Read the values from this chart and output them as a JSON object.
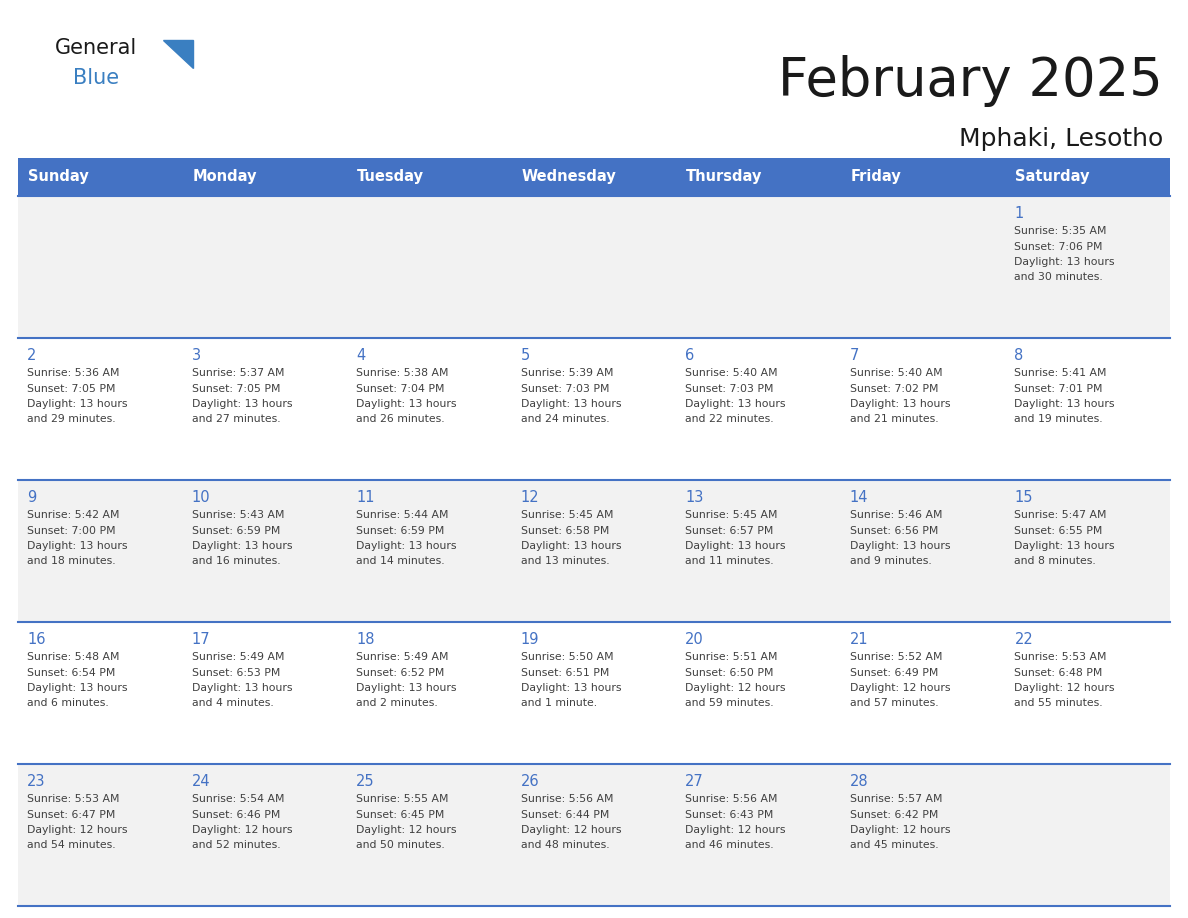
{
  "title": "February 2025",
  "subtitle": "Mphaki, Lesotho",
  "days_of_week": [
    "Sunday",
    "Monday",
    "Tuesday",
    "Wednesday",
    "Thursday",
    "Friday",
    "Saturday"
  ],
  "header_bg": "#4472C4",
  "header_text": "#FFFFFF",
  "bg_color": "#FFFFFF",
  "cell_bg_odd": "#F2F2F2",
  "cell_bg_even": "#FFFFFF",
  "line_color": "#4472C4",
  "day_num_color": "#4472C4",
  "text_color": "#404040",
  "title_color": "#1a1a1a",
  "logo_general_color": "#1a1a1a",
  "logo_blue_color": "#3A7FC1",
  "calendar_data": [
    [
      null,
      null,
      null,
      null,
      null,
      null,
      {
        "day": 1,
        "sunrise": "5:35 AM",
        "sunset": "7:06 PM",
        "daylight": "13 hours and 30 minutes."
      }
    ],
    [
      {
        "day": 2,
        "sunrise": "5:36 AM",
        "sunset": "7:05 PM",
        "daylight": "13 hours and 29 minutes."
      },
      {
        "day": 3,
        "sunrise": "5:37 AM",
        "sunset": "7:05 PM",
        "daylight": "13 hours and 27 minutes."
      },
      {
        "day": 4,
        "sunrise": "5:38 AM",
        "sunset": "7:04 PM",
        "daylight": "13 hours and 26 minutes."
      },
      {
        "day": 5,
        "sunrise": "5:39 AM",
        "sunset": "7:03 PM",
        "daylight": "13 hours and 24 minutes."
      },
      {
        "day": 6,
        "sunrise": "5:40 AM",
        "sunset": "7:03 PM",
        "daylight": "13 hours and 22 minutes."
      },
      {
        "day": 7,
        "sunrise": "5:40 AM",
        "sunset": "7:02 PM",
        "daylight": "13 hours and 21 minutes."
      },
      {
        "day": 8,
        "sunrise": "5:41 AM",
        "sunset": "7:01 PM",
        "daylight": "13 hours and 19 minutes."
      }
    ],
    [
      {
        "day": 9,
        "sunrise": "5:42 AM",
        "sunset": "7:00 PM",
        "daylight": "13 hours and 18 minutes."
      },
      {
        "day": 10,
        "sunrise": "5:43 AM",
        "sunset": "6:59 PM",
        "daylight": "13 hours and 16 minutes."
      },
      {
        "day": 11,
        "sunrise": "5:44 AM",
        "sunset": "6:59 PM",
        "daylight": "13 hours and 14 minutes."
      },
      {
        "day": 12,
        "sunrise": "5:45 AM",
        "sunset": "6:58 PM",
        "daylight": "13 hours and 13 minutes."
      },
      {
        "day": 13,
        "sunrise": "5:45 AM",
        "sunset": "6:57 PM",
        "daylight": "13 hours and 11 minutes."
      },
      {
        "day": 14,
        "sunrise": "5:46 AM",
        "sunset": "6:56 PM",
        "daylight": "13 hours and 9 minutes."
      },
      {
        "day": 15,
        "sunrise": "5:47 AM",
        "sunset": "6:55 PM",
        "daylight": "13 hours and 8 minutes."
      }
    ],
    [
      {
        "day": 16,
        "sunrise": "5:48 AM",
        "sunset": "6:54 PM",
        "daylight": "13 hours and 6 minutes."
      },
      {
        "day": 17,
        "sunrise": "5:49 AM",
        "sunset": "6:53 PM",
        "daylight": "13 hours and 4 minutes."
      },
      {
        "day": 18,
        "sunrise": "5:49 AM",
        "sunset": "6:52 PM",
        "daylight": "13 hours and 2 minutes."
      },
      {
        "day": 19,
        "sunrise": "5:50 AM",
        "sunset": "6:51 PM",
        "daylight": "13 hours and 1 minute."
      },
      {
        "day": 20,
        "sunrise": "5:51 AM",
        "sunset": "6:50 PM",
        "daylight": "12 hours and 59 minutes."
      },
      {
        "day": 21,
        "sunrise": "5:52 AM",
        "sunset": "6:49 PM",
        "daylight": "12 hours and 57 minutes."
      },
      {
        "day": 22,
        "sunrise": "5:53 AM",
        "sunset": "6:48 PM",
        "daylight": "12 hours and 55 minutes."
      }
    ],
    [
      {
        "day": 23,
        "sunrise": "5:53 AM",
        "sunset": "6:47 PM",
        "daylight": "12 hours and 54 minutes."
      },
      {
        "day": 24,
        "sunrise": "5:54 AM",
        "sunset": "6:46 PM",
        "daylight": "12 hours and 52 minutes."
      },
      {
        "day": 25,
        "sunrise": "5:55 AM",
        "sunset": "6:45 PM",
        "daylight": "12 hours and 50 minutes."
      },
      {
        "day": 26,
        "sunrise": "5:56 AM",
        "sunset": "6:44 PM",
        "daylight": "12 hours and 48 minutes."
      },
      {
        "day": 27,
        "sunrise": "5:56 AM",
        "sunset": "6:43 PM",
        "daylight": "12 hours and 46 minutes."
      },
      {
        "day": 28,
        "sunrise": "5:57 AM",
        "sunset": "6:42 PM",
        "daylight": "12 hours and 45 minutes."
      },
      null
    ]
  ],
  "fig_width": 11.88,
  "fig_height": 9.18,
  "dpi": 100
}
